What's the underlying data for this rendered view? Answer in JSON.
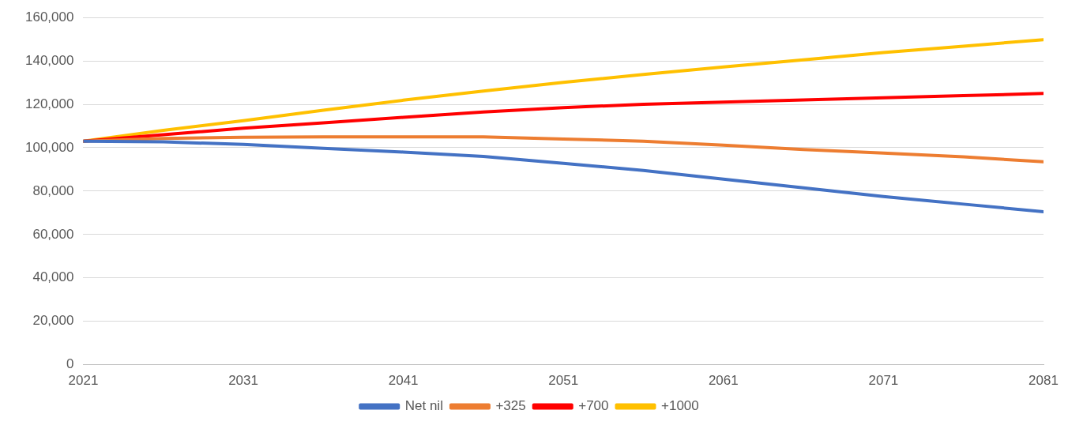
{
  "chart_data": {
    "type": "line",
    "x": [
      2021,
      2026,
      2031,
      2036,
      2041,
      2046,
      2051,
      2056,
      2061,
      2066,
      2071,
      2076,
      2081
    ],
    "series": [
      {
        "name": "Net nil",
        "color": "#4472c4",
        "values": [
          103000,
          102700,
          101500,
          99700,
          98000,
          96000,
          92800,
          89500,
          85500,
          81500,
          77500,
          74000,
          70500
        ]
      },
      {
        "name": "+325",
        "color": "#ed7d31",
        "values": [
          103000,
          104300,
          104800,
          105000,
          105000,
          105000,
          104000,
          103000,
          101200,
          99200,
          97500,
          95800,
          93500
        ]
      },
      {
        "name": "+700",
        "color": "#ff0000",
        "values": [
          103000,
          106000,
          109000,
          111500,
          114000,
          116500,
          118500,
          120000,
          121000,
          122000,
          123000,
          124000,
          125000
        ]
      },
      {
        "name": "+1000",
        "color": "#ffc000",
        "values": [
          103000,
          108000,
          112500,
          117300,
          121900,
          126100,
          130100,
          133800,
          137200,
          140500,
          143900,
          146800,
          149800
        ]
      }
    ],
    "xlim": [
      2021,
      2081
    ],
    "xticks": [
      2021,
      2031,
      2041,
      2051,
      2061,
      2071,
      2081
    ],
    "ylim": [
      0,
      160000
    ],
    "yticks": [
      0,
      {
        "value": 20000,
        "label": "20,000"
      },
      {
        "value": 40000,
        "label": "40,000"
      },
      {
        "value": 60000,
        "label": "60,000"
      },
      {
        "value": 80000,
        "label": "80,000"
      },
      {
        "value": 100000,
        "label": "100,000"
      },
      {
        "value": 120000,
        "label": "120,000"
      },
      {
        "value": 140000,
        "label": "140,000"
      },
      {
        "value": 160000,
        "label": "160,000"
      }
    ],
    "grid": "y",
    "legend": "bottom",
    "marker": "none",
    "line_style": "solid"
  }
}
